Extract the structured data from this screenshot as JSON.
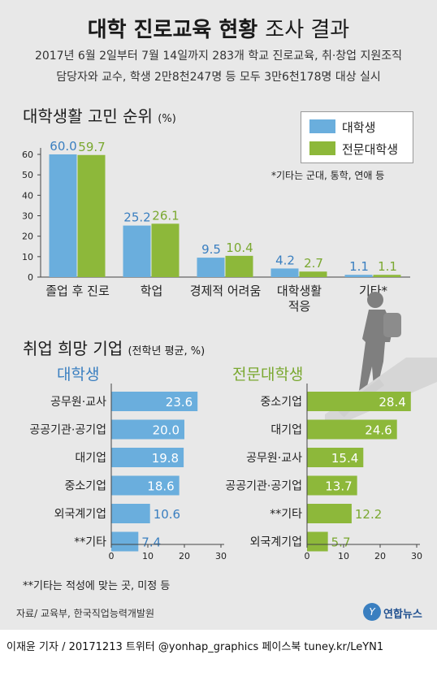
{
  "title": {
    "bold": "대학 진로교육 현황",
    "light": "조사 결과"
  },
  "subtitle": [
    "2017년 6월 2일부터 7월 14일까지 283개 학교 진로교육, 취·창업 지원조직",
    "담당자와 교수, 학생 2만8천247명 등 모두 3만6천178명 대상 실시"
  ],
  "colors": {
    "blue": "#6aaedd",
    "green": "#8db83a",
    "blue_text": "#3a7fc0",
    "green_text": "#7aa830",
    "bg": "#e8e8e8"
  },
  "chart_data": [
    {
      "type": "bar",
      "title": "대학생활 고민 순위",
      "unit": "(%)",
      "categories": [
        "졸업 후 진로",
        "학업",
        "경제적 어려움",
        "대학생활 적응",
        "기타*"
      ],
      "series": [
        {
          "name": "대학생",
          "values": [
            60.0,
            25.2,
            9.5,
            4.2,
            1.1
          ]
        },
        {
          "name": "전문대학생",
          "values": [
            59.7,
            26.1,
            10.4,
            2.7,
            1.1
          ]
        }
      ],
      "value_labels": [
        [
          "60.0",
          "25.2",
          "9.5",
          "4.2",
          "1.1"
        ],
        [
          "59.7",
          "26.1",
          "10.4",
          "2.7",
          "1.1"
        ]
      ],
      "ylim": [
        0,
        60
      ],
      "yticks": [
        "0",
        "10",
        "20",
        "30",
        "40",
        "50",
        "60"
      ],
      "legend": "top-right",
      "note": "*기타는 군대, 통학, 연애 등"
    },
    {
      "type": "bar",
      "orientation": "horizontal",
      "title": "취업 희망 기업",
      "unit": "(전학년 평균, %)",
      "panels": [
        {
          "name": "대학생",
          "categories": [
            "공무원·교사",
            "공공기관·공기업",
            "대기업",
            "중소기업",
            "외국계기업",
            "**기타"
          ],
          "values": [
            23.6,
            20.0,
            19.8,
            18.6,
            10.6,
            7.4
          ],
          "labels": [
            "23.6",
            "20.0",
            "19.8",
            "18.6",
            "10.6",
            "7.4"
          ]
        },
        {
          "name": "전문대학생",
          "categories": [
            "중소기업",
            "대기업",
            "공무원·교사",
            "공공기관·공기업",
            "**기타",
            "외국계기업"
          ],
          "values": [
            28.4,
            24.6,
            15.4,
            13.7,
            12.2,
            5.7
          ],
          "labels": [
            "28.4",
            "24.6",
            "15.4",
            "13.7",
            "12.2",
            "5.7"
          ]
        }
      ],
      "xlim": [
        0,
        30
      ],
      "xticks": [
        "0",
        "10",
        "20",
        "30"
      ],
      "note": "**기타는 적성에 맞는 곳, 미정 등"
    }
  ],
  "source": "자료/ 교육부, 한국직업능력개발원",
  "brand": "연합뉴스",
  "footer": "이재윤 기자 / 20171213   트위터 @yonhap_graphics  페이스북 tuney.kr/LeYN1"
}
